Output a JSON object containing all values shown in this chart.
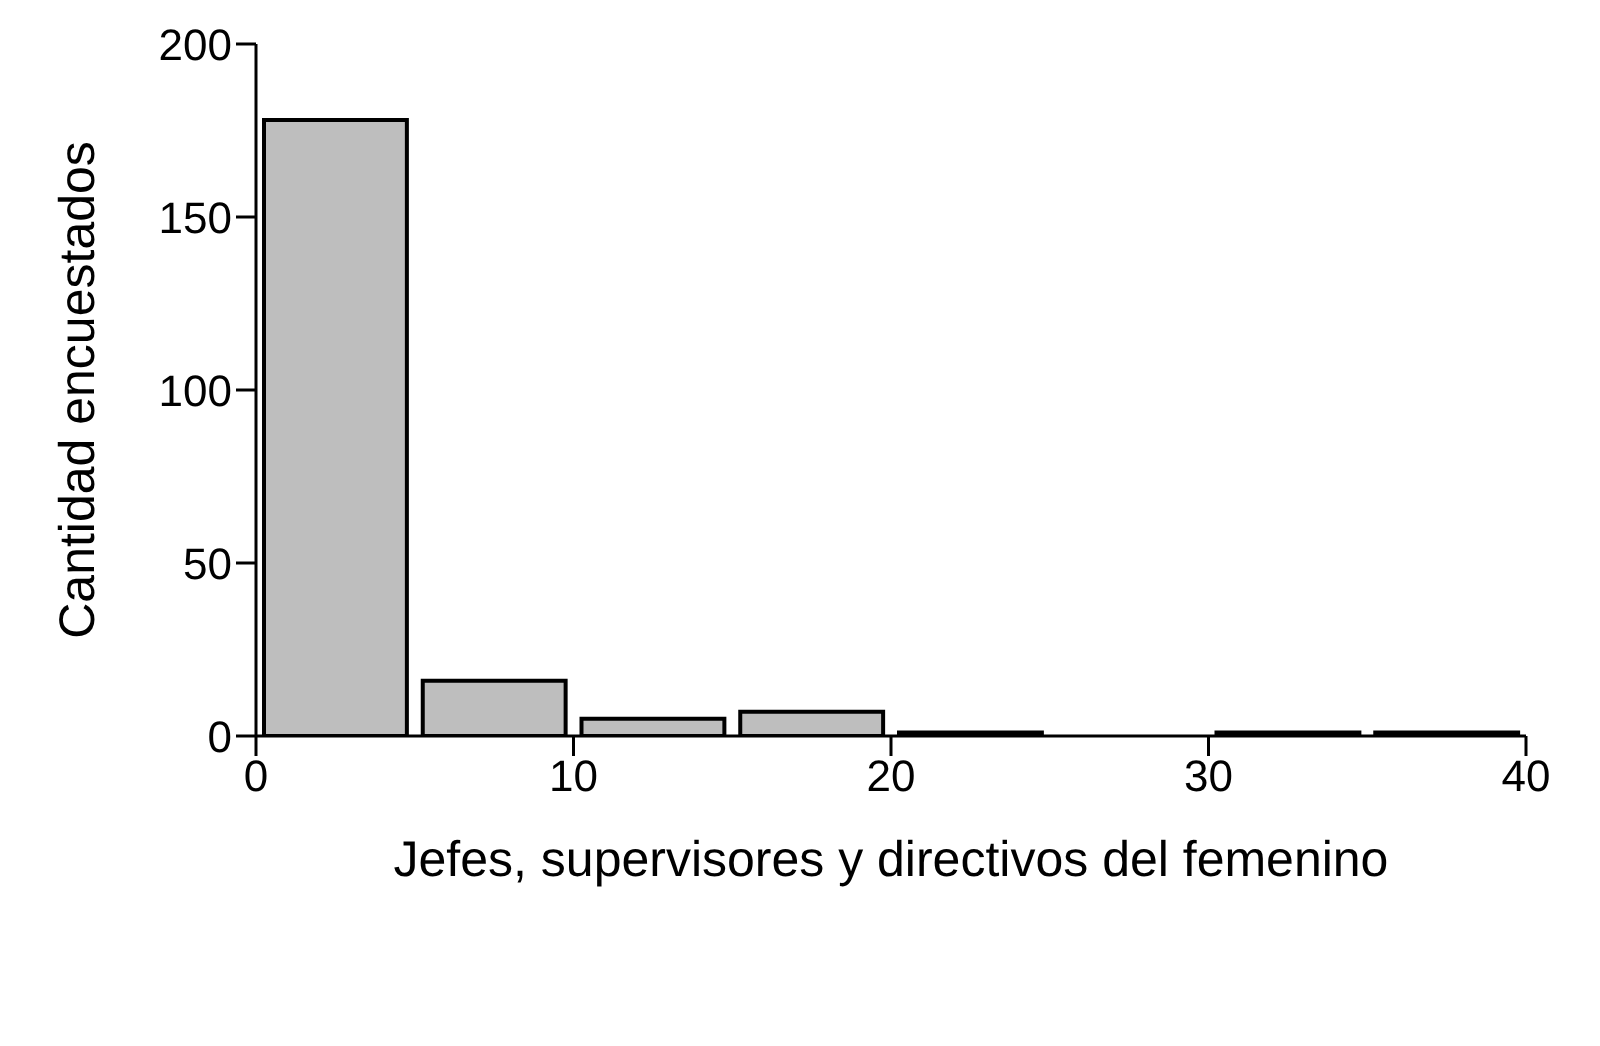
{
  "chart_data": {
    "type": "histogram",
    "xlabel": "Jefes, supervisores y directivos del femenino",
    "ylabel": "Cantidad encuestados",
    "bins": [
      0,
      5,
      10,
      15,
      20,
      25,
      30,
      35,
      40
    ],
    "values": [
      178,
      16,
      5,
      7,
      1,
      0,
      1,
      1
    ],
    "color": "#bebebe",
    "xlim": [
      0,
      40
    ],
    "xticks": [
      0,
      10,
      20,
      30,
      40
    ],
    "ylim": [
      0,
      200
    ],
    "yticks": [
      0,
      50,
      100,
      150,
      200
    ],
    "grid": false
  }
}
